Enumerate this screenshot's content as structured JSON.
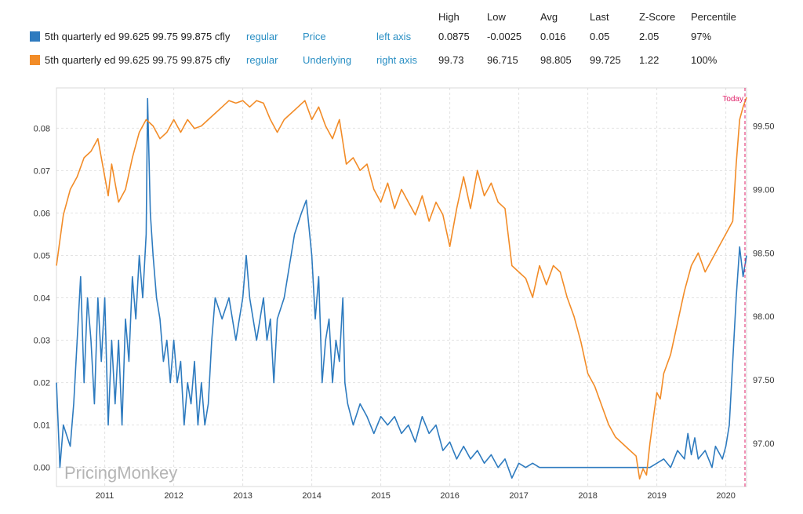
{
  "legend": {
    "headers": [
      "High",
      "Low",
      "Avg",
      "Last",
      "Z-Score",
      "Percentile"
    ],
    "rows": [
      {
        "name": "5th quarterly ed 99.625 99.75 99.875 cfly",
        "style": "regular",
        "field": "Price",
        "axis": "left axis",
        "color": "#2e7bbf",
        "stats": [
          "0.0875",
          "-0.0025",
          "0.016",
          "0.05",
          "2.05",
          "97%"
        ]
      },
      {
        "name": "5th quarterly ed 99.625 99.75 99.875 cfly",
        "style": "regular",
        "field": "Underlying",
        "axis": "right axis",
        "color": "#f28c28",
        "stats": [
          "99.73",
          "96.715",
          "98.805",
          "99.725",
          "1.22",
          "100%"
        ]
      }
    ]
  },
  "watermark": "PricingMonkey",
  "today_label": "Today",
  "chart_data": {
    "type": "line",
    "x_range": [
      2010.3,
      2020.3
    ],
    "x_ticks": [
      "2011",
      "2012",
      "2013",
      "2014",
      "2015",
      "2016",
      "2017",
      "2018",
      "2019",
      "2020"
    ],
    "y_left": {
      "min": -0.0045,
      "max": 0.0895,
      "ticks": [
        "0.00",
        "0.01",
        "0.02",
        "0.03",
        "0.04",
        "0.05",
        "0.06",
        "0.07",
        "0.08"
      ]
    },
    "y_right": {
      "min": 96.66,
      "max": 99.8,
      "ticks": [
        "97.00",
        "97.50",
        "98.00",
        "98.50",
        "99.00",
        "99.50"
      ]
    },
    "grid": true,
    "series": [
      {
        "name": "Price",
        "axis": "left",
        "color": "#2e7bbf",
        "points": [
          [
            2010.3,
            0.02
          ],
          [
            2010.35,
            0.0
          ],
          [
            2010.4,
            0.01
          ],
          [
            2010.5,
            0.005
          ],
          [
            2010.55,
            0.015
          ],
          [
            2010.6,
            0.03
          ],
          [
            2010.65,
            0.045
          ],
          [
            2010.7,
            0.02
          ],
          [
            2010.75,
            0.04
          ],
          [
            2010.8,
            0.03
          ],
          [
            2010.85,
            0.015
          ],
          [
            2010.9,
            0.04
          ],
          [
            2010.95,
            0.025
          ],
          [
            2011.0,
            0.04
          ],
          [
            2011.05,
            0.01
          ],
          [
            2011.1,
            0.03
          ],
          [
            2011.15,
            0.015
          ],
          [
            2011.2,
            0.03
          ],
          [
            2011.25,
            0.01
          ],
          [
            2011.3,
            0.035
          ],
          [
            2011.35,
            0.025
          ],
          [
            2011.4,
            0.045
          ],
          [
            2011.45,
            0.035
          ],
          [
            2011.5,
            0.05
          ],
          [
            2011.55,
            0.04
          ],
          [
            2011.6,
            0.055
          ],
          [
            2011.62,
            0.087
          ],
          [
            2011.66,
            0.06
          ],
          [
            2011.7,
            0.05
          ],
          [
            2011.75,
            0.04
          ],
          [
            2011.8,
            0.035
          ],
          [
            2011.85,
            0.025
          ],
          [
            2011.9,
            0.03
          ],
          [
            2011.95,
            0.02
          ],
          [
            2012.0,
            0.03
          ],
          [
            2012.05,
            0.02
          ],
          [
            2012.1,
            0.025
          ],
          [
            2012.15,
            0.01
          ],
          [
            2012.2,
            0.02
          ],
          [
            2012.25,
            0.015
          ],
          [
            2012.3,
            0.025
          ],
          [
            2012.35,
            0.01
          ],
          [
            2012.4,
            0.02
          ],
          [
            2012.45,
            0.01
          ],
          [
            2012.5,
            0.015
          ],
          [
            2012.55,
            0.03
          ],
          [
            2012.6,
            0.04
          ],
          [
            2012.7,
            0.035
          ],
          [
            2012.8,
            0.04
          ],
          [
            2012.9,
            0.03
          ],
          [
            2013.0,
            0.04
          ],
          [
            2013.05,
            0.05
          ],
          [
            2013.1,
            0.04
          ],
          [
            2013.2,
            0.03
          ],
          [
            2013.3,
            0.04
          ],
          [
            2013.35,
            0.03
          ],
          [
            2013.4,
            0.035
          ],
          [
            2013.45,
            0.02
          ],
          [
            2013.5,
            0.035
          ],
          [
            2013.6,
            0.04
          ],
          [
            2013.7,
            0.05
          ],
          [
            2013.75,
            0.055
          ],
          [
            2013.85,
            0.06
          ],
          [
            2013.92,
            0.063
          ],
          [
            2014.0,
            0.05
          ],
          [
            2014.05,
            0.035
          ],
          [
            2014.1,
            0.045
          ],
          [
            2014.15,
            0.02
          ],
          [
            2014.2,
            0.03
          ],
          [
            2014.25,
            0.035
          ],
          [
            2014.3,
            0.02
          ],
          [
            2014.35,
            0.03
          ],
          [
            2014.4,
            0.025
          ],
          [
            2014.45,
            0.04
          ],
          [
            2014.48,
            0.02
          ],
          [
            2014.52,
            0.015
          ],
          [
            2014.6,
            0.01
          ],
          [
            2014.7,
            0.015
          ],
          [
            2014.8,
            0.012
          ],
          [
            2014.9,
            0.008
          ],
          [
            2015.0,
            0.012
          ],
          [
            2015.1,
            0.01
          ],
          [
            2015.2,
            0.012
          ],
          [
            2015.3,
            0.008
          ],
          [
            2015.4,
            0.01
          ],
          [
            2015.5,
            0.006
          ],
          [
            2015.6,
            0.012
          ],
          [
            2015.7,
            0.008
          ],
          [
            2015.8,
            0.01
          ],
          [
            2015.9,
            0.004
          ],
          [
            2016.0,
            0.006
          ],
          [
            2016.1,
            0.002
          ],
          [
            2016.2,
            0.005
          ],
          [
            2016.3,
            0.002
          ],
          [
            2016.4,
            0.004
          ],
          [
            2016.5,
            0.001
          ],
          [
            2016.6,
            0.003
          ],
          [
            2016.7,
            0.0
          ],
          [
            2016.8,
            0.002
          ],
          [
            2016.9,
            -0.0025
          ],
          [
            2017.0,
            0.001
          ],
          [
            2017.1,
            0.0
          ],
          [
            2017.2,
            0.001
          ],
          [
            2017.3,
            0.0
          ],
          [
            2017.5,
            0.0
          ],
          [
            2017.8,
            0.0
          ],
          [
            2018.0,
            0.0
          ],
          [
            2018.3,
            0.0
          ],
          [
            2018.5,
            0.0
          ],
          [
            2018.7,
            0.0
          ],
          [
            2018.9,
            0.0
          ],
          [
            2019.0,
            0.001
          ],
          [
            2019.1,
            0.002
          ],
          [
            2019.2,
            0.0
          ],
          [
            2019.3,
            0.004
          ],
          [
            2019.4,
            0.002
          ],
          [
            2019.45,
            0.008
          ],
          [
            2019.5,
            0.003
          ],
          [
            2019.55,
            0.007
          ],
          [
            2019.6,
            0.002
          ],
          [
            2019.7,
            0.004
          ],
          [
            2019.8,
            0.0
          ],
          [
            2019.85,
            0.005
          ],
          [
            2019.95,
            0.002
          ],
          [
            2020.0,
            0.005
          ],
          [
            2020.05,
            0.01
          ],
          [
            2020.1,
            0.025
          ],
          [
            2020.15,
            0.04
          ],
          [
            2020.2,
            0.052
          ],
          [
            2020.25,
            0.045
          ],
          [
            2020.3,
            0.05
          ]
        ]
      },
      {
        "name": "Underlying",
        "axis": "right",
        "color": "#f28c28",
        "points": [
          [
            2010.3,
            98.4
          ],
          [
            2010.35,
            98.6
          ],
          [
            2010.4,
            98.8
          ],
          [
            2010.5,
            99.0
          ],
          [
            2010.6,
            99.1
          ],
          [
            2010.7,
            99.25
          ],
          [
            2010.8,
            99.3
          ],
          [
            2010.9,
            99.4
          ],
          [
            2011.0,
            99.1
          ],
          [
            2011.05,
            98.95
          ],
          [
            2011.1,
            99.2
          ],
          [
            2011.2,
            98.9
          ],
          [
            2011.3,
            99.0
          ],
          [
            2011.4,
            99.25
          ],
          [
            2011.5,
            99.45
          ],
          [
            2011.6,
            99.55
          ],
          [
            2011.7,
            99.5
          ],
          [
            2011.8,
            99.4
          ],
          [
            2011.9,
            99.45
          ],
          [
            2012.0,
            99.55
          ],
          [
            2012.1,
            99.45
          ],
          [
            2012.2,
            99.55
          ],
          [
            2012.3,
            99.48
          ],
          [
            2012.4,
            99.5
          ],
          [
            2012.5,
            99.55
          ],
          [
            2012.6,
            99.6
          ],
          [
            2012.7,
            99.65
          ],
          [
            2012.8,
            99.7
          ],
          [
            2012.9,
            99.68
          ],
          [
            2013.0,
            99.7
          ],
          [
            2013.1,
            99.65
          ],
          [
            2013.2,
            99.7
          ],
          [
            2013.3,
            99.68
          ],
          [
            2013.4,
            99.55
          ],
          [
            2013.5,
            99.45
          ],
          [
            2013.6,
            99.55
          ],
          [
            2013.7,
            99.6
          ],
          [
            2013.8,
            99.65
          ],
          [
            2013.9,
            99.7
          ],
          [
            2014.0,
            99.55
          ],
          [
            2014.1,
            99.65
          ],
          [
            2014.2,
            99.5
          ],
          [
            2014.3,
            99.4
          ],
          [
            2014.4,
            99.55
          ],
          [
            2014.5,
            99.2
          ],
          [
            2014.6,
            99.25
          ],
          [
            2014.7,
            99.15
          ],
          [
            2014.8,
            99.2
          ],
          [
            2014.9,
            99.0
          ],
          [
            2015.0,
            98.9
          ],
          [
            2015.1,
            99.05
          ],
          [
            2015.2,
            98.85
          ],
          [
            2015.3,
            99.0
          ],
          [
            2015.4,
            98.9
          ],
          [
            2015.5,
            98.8
          ],
          [
            2015.6,
            98.95
          ],
          [
            2015.7,
            98.75
          ],
          [
            2015.8,
            98.9
          ],
          [
            2015.9,
            98.8
          ],
          [
            2016.0,
            98.55
          ],
          [
            2016.1,
            98.85
          ],
          [
            2016.2,
            99.1
          ],
          [
            2016.3,
            98.85
          ],
          [
            2016.4,
            99.15
          ],
          [
            2016.5,
            98.95
          ],
          [
            2016.6,
            99.05
          ],
          [
            2016.7,
            98.9
          ],
          [
            2016.8,
            98.85
          ],
          [
            2016.9,
            98.4
          ],
          [
            2017.0,
            98.35
          ],
          [
            2017.1,
            98.3
          ],
          [
            2017.2,
            98.15
          ],
          [
            2017.3,
            98.4
          ],
          [
            2017.4,
            98.25
          ],
          [
            2017.5,
            98.4
          ],
          [
            2017.6,
            98.35
          ],
          [
            2017.7,
            98.15
          ],
          [
            2017.8,
            98.0
          ],
          [
            2017.9,
            97.8
          ],
          [
            2018.0,
            97.55
          ],
          [
            2018.1,
            97.45
          ],
          [
            2018.2,
            97.3
          ],
          [
            2018.3,
            97.15
          ],
          [
            2018.4,
            97.05
          ],
          [
            2018.5,
            97.0
          ],
          [
            2018.6,
            96.95
          ],
          [
            2018.7,
            96.9
          ],
          [
            2018.75,
            96.72
          ],
          [
            2018.8,
            96.8
          ],
          [
            2018.85,
            96.75
          ],
          [
            2018.9,
            97.0
          ],
          [
            2019.0,
            97.4
          ],
          [
            2019.05,
            97.35
          ],
          [
            2019.1,
            97.55
          ],
          [
            2019.2,
            97.7
          ],
          [
            2019.3,
            97.95
          ],
          [
            2019.4,
            98.2
          ],
          [
            2019.5,
            98.4
          ],
          [
            2019.6,
            98.5
          ],
          [
            2019.7,
            98.35
          ],
          [
            2019.8,
            98.45
          ],
          [
            2019.9,
            98.55
          ],
          [
            2020.0,
            98.65
          ],
          [
            2020.05,
            98.7
          ],
          [
            2020.1,
            98.75
          ],
          [
            2020.15,
            99.2
          ],
          [
            2020.2,
            99.55
          ],
          [
            2020.25,
            99.65
          ],
          [
            2020.3,
            99.725
          ]
        ]
      }
    ]
  }
}
